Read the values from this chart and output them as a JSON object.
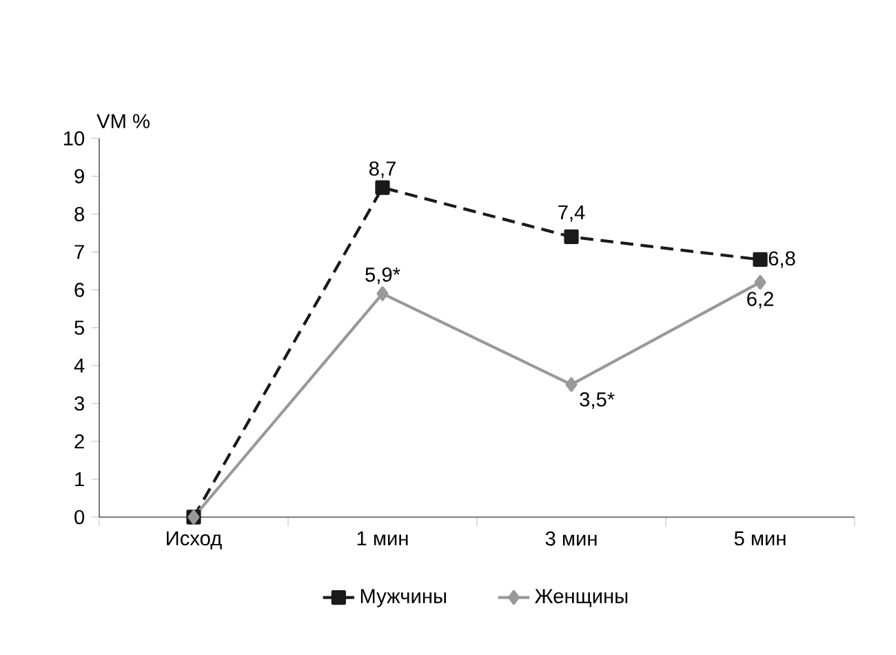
{
  "chart_data": {
    "type": "line",
    "ylabel": "VM %",
    "categories": [
      "Исход",
      "1 мин",
      "3 мин",
      "5 мин"
    ],
    "ylim": [
      0,
      10
    ],
    "yticks": [
      0,
      1,
      2,
      3,
      4,
      5,
      6,
      7,
      8,
      9,
      10
    ],
    "legend": "bottom",
    "grid": false,
    "series": [
      {
        "name": "Мужчины",
        "color": "#1a1a1a",
        "marker": "square",
        "line_style": "dashed",
        "values": [
          0,
          8.7,
          7.4,
          6.8
        ],
        "value_labels": [
          null,
          "8,7",
          "7,4",
          "6,8"
        ]
      },
      {
        "name": "Женщины",
        "color": "#999999",
        "marker": "diamond",
        "line_style": "solid",
        "values": [
          0,
          5.9,
          3.5,
          6.2
        ],
        "value_labels": [
          null,
          "5,9*",
          "3,5*",
          "6,2"
        ]
      }
    ]
  }
}
